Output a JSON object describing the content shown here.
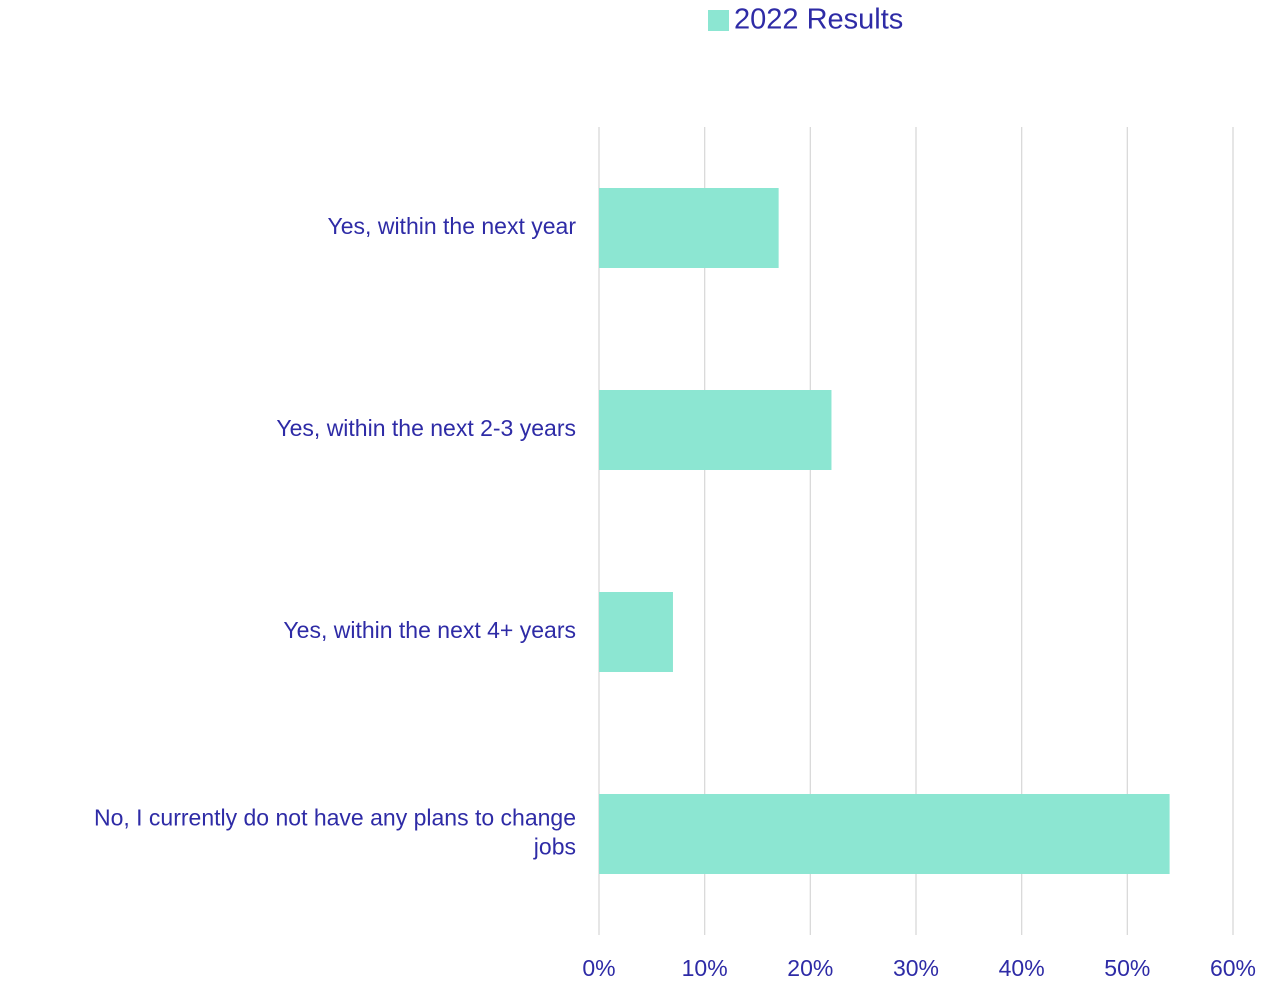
{
  "chart_data": {
    "type": "bar",
    "orientation": "horizontal",
    "categories": [
      [
        "Yes, within the next year"
      ],
      [
        "Yes, within the next 2-3 years"
      ],
      [
        "Yes, within the next 4+ years"
      ],
      [
        "No, I currently do not have any plans to change",
        "jobs"
      ]
    ],
    "series": [
      {
        "name": "2022 Results",
        "values": [
          17,
          22,
          7,
          54
        ],
        "color": "#8ce6d2"
      }
    ],
    "xlim": [
      0,
      60
    ],
    "xticks": [
      0,
      10,
      20,
      30,
      40,
      50,
      60
    ],
    "tick_suffix": "%",
    "grid": true,
    "gridline_color": "#d9d9d9",
    "text_color": "#2e2ba6",
    "legend_position": "top"
  }
}
